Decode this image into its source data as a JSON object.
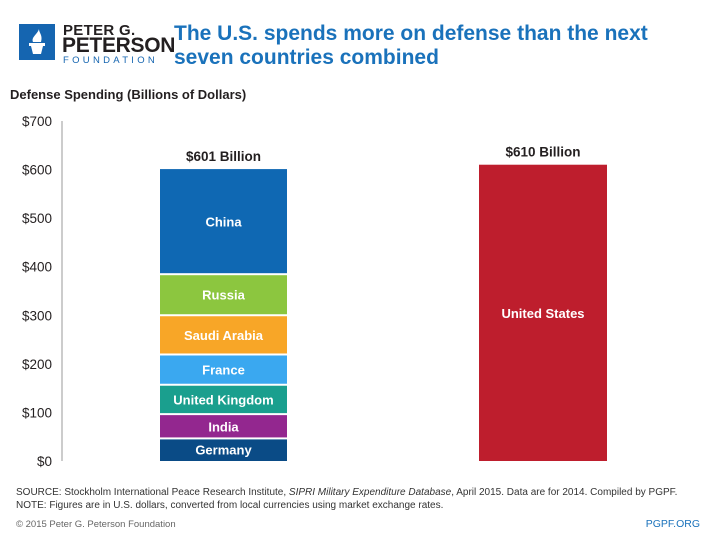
{
  "logo": {
    "line1": "PETER G.",
    "line2": "PETERSON",
    "line3": "FOUNDATION"
  },
  "title": "The U.S. spends more on defense than the next seven countries combined",
  "chart_data": {
    "type": "bar",
    "stacked": true,
    "ylabel": "Defense Spending (Billions of Dollars)",
    "ylim": [
      0,
      700
    ],
    "yticks": [
      0,
      100,
      200,
      300,
      400,
      500,
      600,
      700
    ],
    "ytick_labels": [
      "$0",
      "$100",
      "$200",
      "$300",
      "$400",
      "$500",
      "$600",
      "$700"
    ],
    "grid": false,
    "bars": [
      {
        "total_label": "$601 Billion",
        "segments": [
          {
            "name": "Germany",
            "value": 46.5,
            "color": "#0a4b86"
          },
          {
            "name": "India",
            "value": 50.0,
            "color": "#93278f"
          },
          {
            "name": "United Kingdom",
            "value": 60.5,
            "color": "#1a9f8e"
          },
          {
            "name": "France",
            "value": 62.3,
            "color": "#3aa8f0"
          },
          {
            "name": "Saudi Arabia",
            "value": 80.8,
            "color": "#f8a627"
          },
          {
            "name": "Russia",
            "value": 84.5,
            "color": "#8cc63f"
          },
          {
            "name": "China",
            "value": 216.4,
            "color": "#0f68b3"
          }
        ]
      },
      {
        "total_label": "$610 Billion",
        "segments": [
          {
            "name": "United States",
            "value": 610,
            "color": "#be1e2d"
          }
        ]
      }
    ]
  },
  "footer": {
    "source_prefix": "SOURCE: Stockholm International Peace Research Institute, ",
    "source_italic": "SIPRI Military Expenditure Database",
    "source_suffix": ", April 2015. Data are for 2014. Compiled by PGPF.",
    "note": "NOTE: Figures are in U.S. dollars, converted from local currencies using market exchange rates.",
    "copyright": "© 2015 Peter G. Peterson Foundation",
    "site": "PGPF.ORG"
  }
}
